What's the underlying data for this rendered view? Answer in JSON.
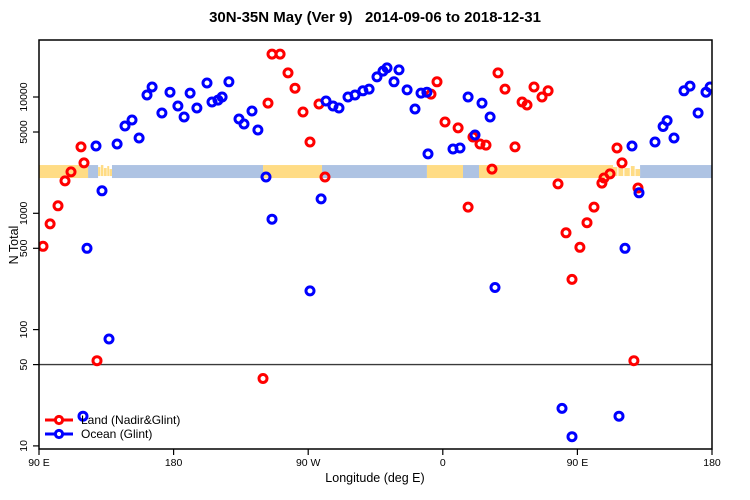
{
  "title": "30N-35N May (Ver 9)   2014-09-06 to 2018-12-31",
  "chart_data": {
    "type": "scatter",
    "title": "30N-35N May (Ver 9)   2014-09-06 to 2018-12-31",
    "xlabel": "Longitude (deg E)",
    "ylabel": "N Total",
    "y_scale": "log",
    "ylim": [
      9.4,
      31000
    ],
    "x_axis": {
      "start_deg_east": 90,
      "span_deg": 450,
      "wraps_around_globe": true
    },
    "grid": "off",
    "reference_line_n": 50,
    "legend_position": "bottom-left inside plot",
    "y_ticks": [
      {
        "n": 10000,
        "label": "10000"
      },
      {
        "n": 5000,
        "label": "5000"
      },
      {
        "n": 1000,
        "label": "1000"
      },
      {
        "n": 500,
        "label": "500"
      },
      {
        "n": 100,
        "label": "100"
      },
      {
        "n": 50,
        "label": "50"
      },
      {
        "n": 10,
        "label": "10"
      }
    ],
    "x_ticks": [
      {
        "lon": 90,
        "label": "90 E"
      },
      {
        "lon": 180,
        "label": "180"
      },
      {
        "lon": 270,
        "label": "90 W"
      },
      {
        "lon": 360,
        "label": "0"
      },
      {
        "lon": 450,
        "label": "90 E"
      },
      {
        "lon": 540,
        "label": "180"
      }
    ],
    "map_band": {
      "description": "30N-35N latitude strip of world coastline drawn across plot",
      "n_top": 2600,
      "n_bottom": 2010,
      "land_color": "#FFDC85",
      "ocean_color": "#AEC3E3",
      "segments": [
        {
          "type": "land",
          "from": 90,
          "to": 122.8,
          "style": "solid"
        },
        {
          "type": "ocean",
          "from": 122.8,
          "to": 129.5,
          "style": "solid"
        },
        {
          "type": "land",
          "from": 129.5,
          "to": 138.8,
          "style": "patchy"
        },
        {
          "type": "ocean",
          "from": 138.8,
          "to": 239.8,
          "style": "solid"
        },
        {
          "type": "land",
          "from": 239.8,
          "to": 279.2,
          "style": "solid"
        },
        {
          "type": "ocean",
          "from": 279.2,
          "to": 349.4,
          "style": "solid"
        },
        {
          "type": "land",
          "from": 349.4,
          "to": 373.5,
          "style": "solid"
        },
        {
          "type": "ocean",
          "from": 373.5,
          "to": 384.2,
          "style": "solid"
        },
        {
          "type": "land",
          "from": 384.2,
          "to": 473.8,
          "style": "solid"
        },
        {
          "type": "land",
          "from": 473.8,
          "to": 491.9,
          "style": "patchy"
        },
        {
          "type": "ocean",
          "from": 491.9,
          "to": 540,
          "style": "solid"
        }
      ]
    },
    "series": [
      {
        "name": "Land (Nadir&Glint)",
        "color": "#FF0000",
        "marker": "open-circle",
        "points": [
          [
            92.7,
            520
          ],
          [
            97.4,
            810
          ],
          [
            102.7,
            1160
          ],
          [
            107.4,
            1900
          ],
          [
            111.4,
            2270
          ],
          [
            120.1,
            2710
          ],
          [
            118.1,
            3720
          ],
          [
            128.8,
            54
          ],
          [
            239.8,
            38
          ],
          [
            245.8,
            23400
          ],
          [
            251.2,
            23400
          ],
          [
            256.5,
            16100
          ],
          [
            261.2,
            11900
          ],
          [
            243.1,
            8870
          ],
          [
            266.5,
            7430
          ],
          [
            277.2,
            8700
          ],
          [
            271.2,
            4100
          ],
          [
            281.2,
            2050
          ],
          [
            352.1,
            10600
          ],
          [
            356.1,
            13500
          ],
          [
            361.5,
            6100
          ],
          [
            370.2,
            5420
          ],
          [
            376.9,
            1130
          ],
          [
            380.2,
            4530
          ],
          [
            384.9,
            3940
          ],
          [
            388.9,
            3860
          ],
          [
            392.9,
            2400
          ],
          [
            396.9,
            16100
          ],
          [
            401.6,
            11700
          ],
          [
            408.3,
            3720
          ],
          [
            413.0,
            9060
          ],
          [
            416.3,
            8530
          ],
          [
            421.0,
            12200
          ],
          [
            426.3,
            10000
          ],
          [
            430.4,
            11300
          ],
          [
            437.0,
            1790
          ],
          [
            442.4,
            680
          ],
          [
            446.4,
            270
          ],
          [
            451.7,
            510
          ],
          [
            456.4,
            830
          ],
          [
            461.1,
            1130
          ],
          [
            466.4,
            1820
          ],
          [
            467.8,
            2010
          ],
          [
            471.8,
            2180
          ],
          [
            476.5,
            3640
          ],
          [
            479.8,
            2710
          ],
          [
            490.5,
            1650
          ],
          [
            487.8,
            54
          ]
        ]
      },
      {
        "name": "Ocean (Glint)",
        "color": "#0000FF",
        "marker": "open-circle",
        "points": [
          [
            128.1,
            3790
          ],
          [
            132.1,
            1560
          ],
          [
            122.1,
            500
          ],
          [
            136.8,
            83
          ],
          [
            142.2,
            3940
          ],
          [
            147.5,
            5630
          ],
          [
            152.2,
            6340
          ],
          [
            156.9,
            4440
          ],
          [
            162.2,
            10400
          ],
          [
            165.6,
            12200
          ],
          [
            172.2,
            7280
          ],
          [
            177.6,
            11000
          ],
          [
            182.9,
            8370
          ],
          [
            187.0,
            6730
          ],
          [
            191.0,
            10800
          ],
          [
            195.6,
            8040
          ],
          [
            202.3,
            13200
          ],
          [
            205.7,
            9060
          ],
          [
            209.7,
            9400
          ],
          [
            212.4,
            10000
          ],
          [
            217.0,
            13500
          ],
          [
            223.7,
            6470
          ],
          [
            227.1,
            5860
          ],
          [
            232.4,
            7580
          ],
          [
            236.4,
            5200
          ],
          [
            241.8,
            2050
          ],
          [
            245.8,
            890
          ],
          [
            271.2,
            215
          ],
          [
            278.6,
            1330
          ],
          [
            281.9,
            9230
          ],
          [
            286.6,
            8370
          ],
          [
            290.6,
            8040
          ],
          [
            296.6,
            10000
          ],
          [
            301.3,
            10400
          ],
          [
            306.6,
            11300
          ],
          [
            310.7,
            11700
          ],
          [
            316.0,
            14900
          ],
          [
            320.0,
            16700
          ],
          [
            322.7,
            17800
          ],
          [
            327.4,
            13500
          ],
          [
            330.7,
            17100
          ],
          [
            336.1,
            11500
          ],
          [
            341.4,
            7890
          ],
          [
            345.4,
            10800
          ],
          [
            349.4,
            11000
          ],
          [
            350.1,
            3240
          ],
          [
            366.8,
            3570
          ],
          [
            371.5,
            3640
          ],
          [
            376.9,
            10000
          ],
          [
            381.5,
            4710
          ],
          [
            386.2,
            8870
          ],
          [
            391.6,
            6730
          ],
          [
            394.9,
            230
          ],
          [
            439.7,
            21
          ],
          [
            446.4,
            12
          ],
          [
            477.8,
            18
          ],
          [
            481.8,
            500
          ],
          [
            486.5,
            3790
          ],
          [
            491.2,
            1500
          ],
          [
            501.9,
            4100
          ],
          [
            507.3,
            5580
          ],
          [
            510.0,
            6270
          ],
          [
            514.6,
            4440
          ],
          [
            521.3,
            11300
          ],
          [
            525.3,
            12400
          ],
          [
            530.7,
            7280
          ],
          [
            536.0,
            11000
          ],
          [
            538.7,
            12200
          ],
          [
            119.4,
            18
          ]
        ]
      }
    ]
  }
}
